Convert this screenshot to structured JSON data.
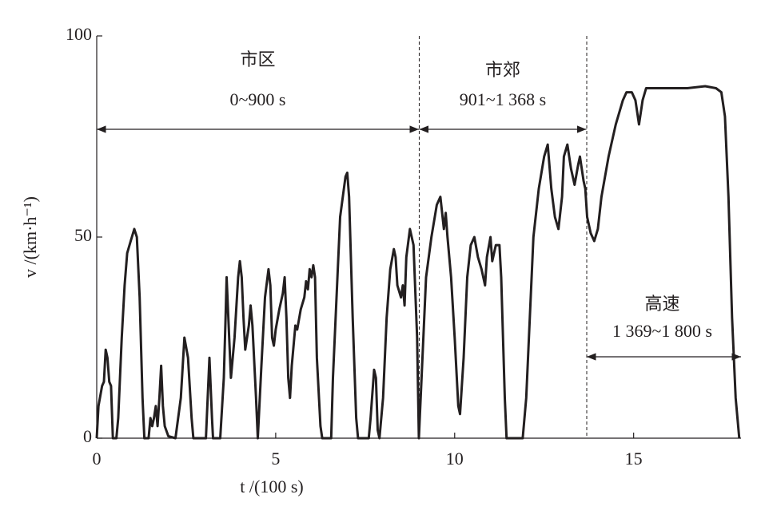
{
  "chart_data": {
    "type": "line",
    "x_label": "t /(100 s)",
    "y_label": "v /(km·h⁻¹)",
    "xlim": [
      0,
      18
    ],
    "ylim": [
      0,
      100
    ],
    "xticks": [
      0,
      5,
      10,
      15
    ],
    "yticks": [
      0,
      50,
      100
    ],
    "color": "#231f20",
    "x": [
      0,
      0.05,
      0.15,
      0.2,
      0.25,
      0.3,
      0.35,
      0.4,
      0.45,
      0.55,
      0.6,
      0.7,
      0.78,
      0.85,
      0.95,
      1.05,
      1.12,
      1.2,
      1.28,
      1.33,
      1.45,
      1.5,
      1.55,
      1.6,
      1.65,
      1.7,
      1.75,
      1.8,
      1.85,
      1.9,
      2.0,
      2.2,
      2.35,
      2.45,
      2.55,
      2.65,
      2.7,
      3.05,
      3.1,
      3.15,
      3.22,
      3.25,
      3.45,
      3.55,
      3.6,
      3.63,
      3.7,
      3.75,
      3.85,
      3.95,
      4.0,
      4.05,
      4.1,
      4.15,
      4.25,
      4.3,
      4.35,
      4.45,
      4.5,
      4.6,
      4.7,
      4.8,
      4.85,
      4.9,
      4.95,
      5.0,
      5.1,
      5.2,
      5.25,
      5.3,
      5.35,
      5.4,
      5.45,
      5.55,
      5.6,
      5.7,
      5.8,
      5.85,
      5.9,
      5.95,
      6.0,
      6.05,
      6.1,
      6.15,
      6.25,
      6.3,
      6.55,
      6.6,
      6.7,
      6.8,
      6.95,
      7.0,
      7.05,
      7.15,
      7.25,
      7.3,
      7.6,
      7.65,
      7.75,
      7.8,
      7.85,
      7.9,
      8.0,
      8.1,
      8.2,
      8.3,
      8.35,
      8.4,
      8.5,
      8.55,
      8.6,
      8.65,
      8.75,
      8.85,
      8.95,
      9.0,
      9.1,
      9.2,
      9.35,
      9.5,
      9.6,
      9.7,
      9.75,
      9.8,
      9.9,
      10.0,
      10.1,
      10.15,
      10.25,
      10.35,
      10.45,
      10.55,
      10.65,
      10.75,
      10.85,
      10.9,
      11.0,
      11.05,
      11.15,
      11.25,
      11.3,
      11.4,
      11.45,
      11.9,
      12.0,
      12.1,
      12.2,
      12.35,
      12.5,
      12.6,
      12.7,
      12.8,
      12.9,
      13.0,
      13.05,
      13.15,
      13.25,
      13.35,
      13.45,
      13.5,
      13.6,
      13.65,
      13.7,
      13.8,
      13.9,
      14.0,
      14.1,
      14.3,
      14.5,
      14.7,
      14.8,
      14.95,
      15.05,
      15.15,
      15.25,
      15.35,
      15.6,
      16.0,
      16.5,
      17.0,
      17.3,
      17.45,
      17.55,
      17.65,
      17.75,
      17.85,
      17.95
    ],
    "values": [
      0,
      8,
      13,
      14,
      22,
      20,
      14,
      13,
      0,
      0,
      5,
      25,
      38,
      46,
      49,
      52,
      50,
      35,
      10,
      0,
      0,
      5,
      3,
      5,
      8,
      3,
      10,
      18,
      8,
      3,
      0.5,
      0,
      10,
      25,
      20,
      5,
      0,
      0,
      10,
      20,
      5,
      0,
      0,
      15,
      30,
      40,
      25,
      15,
      25,
      40,
      44,
      40,
      30,
      22,
      28,
      33,
      28,
      10,
      0,
      18,
      35,
      42,
      38,
      25,
      23,
      27,
      32,
      36,
      40,
      30,
      15,
      10,
      18,
      28,
      27,
      32,
      35,
      39,
      37,
      42,
      40,
      43,
      40,
      20,
      3,
      0,
      0,
      15,
      35,
      55,
      65,
      66,
      60,
      30,
      5,
      0,
      0,
      5,
      17,
      15,
      2,
      0,
      10,
      30,
      42,
      47,
      45,
      38,
      35,
      38,
      33,
      45,
      52,
      48,
      25,
      0,
      20,
      40,
      50,
      58,
      60,
      52,
      56,
      50,
      40,
      25,
      8,
      6,
      20,
      40,
      48,
      50,
      45,
      42,
      38,
      45,
      50,
      44,
      48,
      48,
      40,
      10,
      0,
      0,
      10,
      30,
      50,
      62,
      70,
      73,
      62,
      55,
      52,
      60,
      70,
      73,
      67,
      63,
      68,
      70,
      64,
      62,
      55,
      51,
      49,
      52,
      60,
      70,
      78,
      84,
      86,
      86,
      84,
      78,
      84,
      87,
      87,
      87,
      87,
      87.5,
      87,
      86,
      80,
      60,
      30,
      10,
      0
    ],
    "segments": [
      {
        "name": "市区",
        "range": "0~900 s",
        "start": 0,
        "end": 9
      },
      {
        "name": "市郊",
        "range": "901~1 368 s",
        "start": 9.01,
        "end": 13.68
      },
      {
        "name": "高速",
        "range": "1 369~1 800 s",
        "start": 13.69,
        "end": 18
      }
    ]
  }
}
